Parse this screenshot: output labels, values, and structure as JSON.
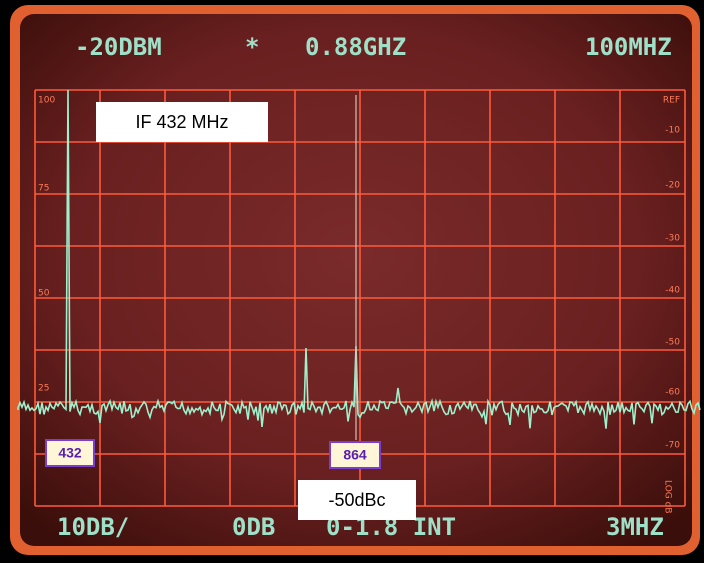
{
  "header": {
    "reference_level": "-20DBM",
    "marker_symbol": "*",
    "center_frequency": "0.88GHZ",
    "span": "100MHZ"
  },
  "footer": {
    "scale": "10DB/",
    "attenuation": "0DB",
    "sweep": "0-1.8 INT",
    "rbw": "3MHZ"
  },
  "left_scale": [
    "100",
    "75",
    "50",
    "25"
  ],
  "right_scale": [
    "REF",
    "-10",
    "-20",
    "-30",
    "-40",
    "-50",
    "-60",
    "-70"
  ],
  "side_label": "LOG dB",
  "annotations": {
    "if_label": "IF 432 MHz",
    "harmonic_label": "-50dBc",
    "markers": [
      "432",
      "864"
    ]
  }
}
